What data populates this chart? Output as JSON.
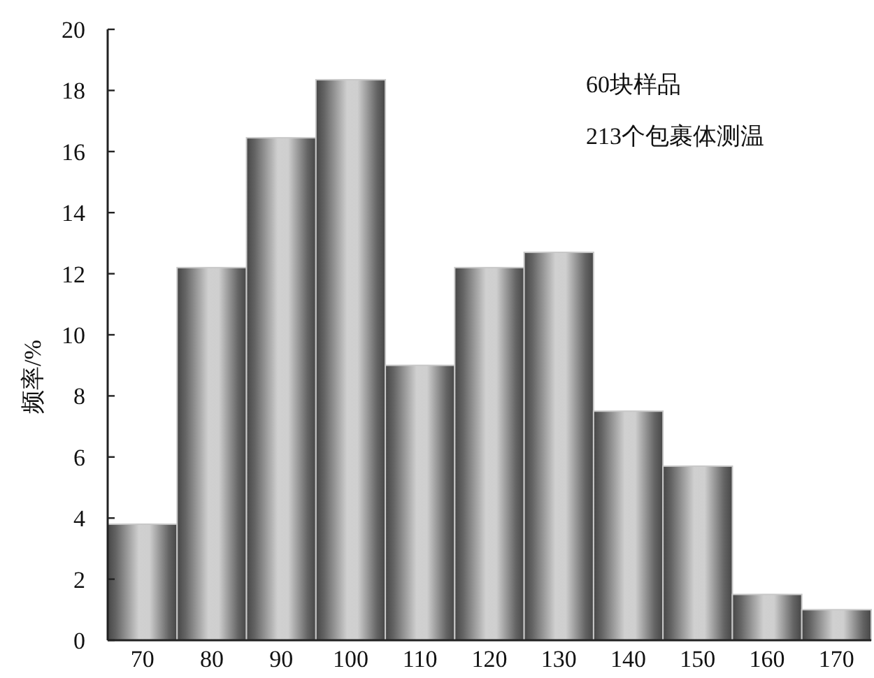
{
  "chart_data": {
    "type": "histogram",
    "ylabel": "频率/%",
    "annotations": [
      "60块样品",
      "213个包裹体测温"
    ],
    "bins": [
      65,
      75,
      85,
      95,
      105,
      115,
      125,
      135,
      145,
      155,
      165,
      175
    ],
    "values": [
      3.8,
      12.2,
      16.45,
      18.35,
      9.0,
      12.2,
      12.7,
      7.5,
      5.7,
      1.5,
      1.0
    ],
    "color": "#c8c8c8",
    "xlim": [
      65,
      175
    ],
    "xticks": [
      70,
      80,
      90,
      100,
      110,
      120,
      130,
      140,
      150,
      160,
      170
    ],
    "ylim": [
      0,
      20
    ],
    "yticks": [
      0,
      2,
      4,
      6,
      8,
      10,
      12,
      14,
      16,
      18,
      20
    ]
  }
}
